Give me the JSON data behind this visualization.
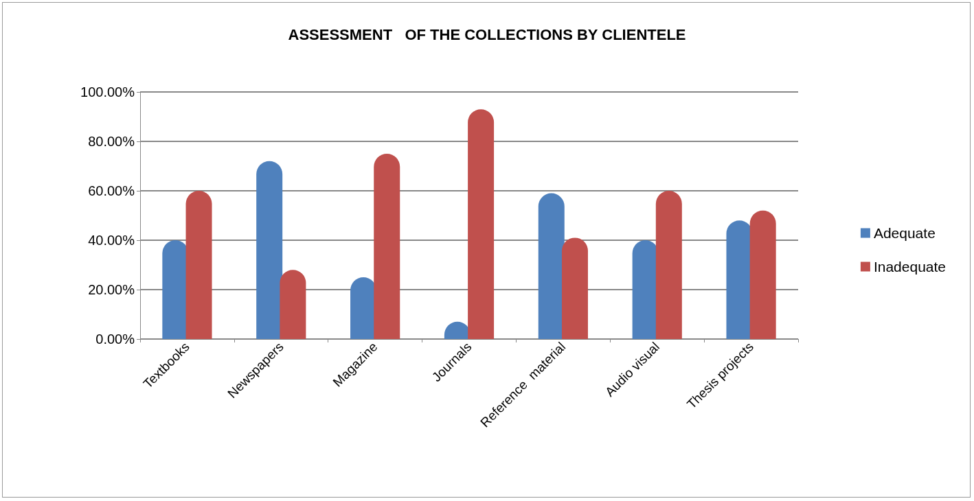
{
  "chart_data": {
    "type": "bar",
    "title": "ASSESSMENT   OF THE COLLECTIONS BY CLIENTELE",
    "categories": [
      "Textbooks",
      "Newspapers",
      "Magazine",
      "Journals",
      "Reference  material",
      "Audio visual",
      "Thesis projects"
    ],
    "series": [
      {
        "name": "Adequate",
        "color": "#4f81bd",
        "values": [
          40,
          72,
          25,
          7,
          59,
          40,
          48
        ]
      },
      {
        "name": "Inadequate",
        "color": "#c0504d",
        "values": [
          60,
          28,
          75,
          93,
          41,
          60,
          52
        ]
      }
    ],
    "ylim": [
      0,
      100
    ],
    "yticks": [
      {
        "value": 0,
        "label": "0.00%"
      },
      {
        "value": 20,
        "label": "20.00%"
      },
      {
        "value": 40,
        "label": "40.00%"
      },
      {
        "value": 60,
        "label": "60.00%"
      },
      {
        "value": 80,
        "label": "80.00%"
      },
      {
        "value": 100,
        "label": "100.00%"
      }
    ],
    "grid": "y",
    "legend": "right"
  }
}
